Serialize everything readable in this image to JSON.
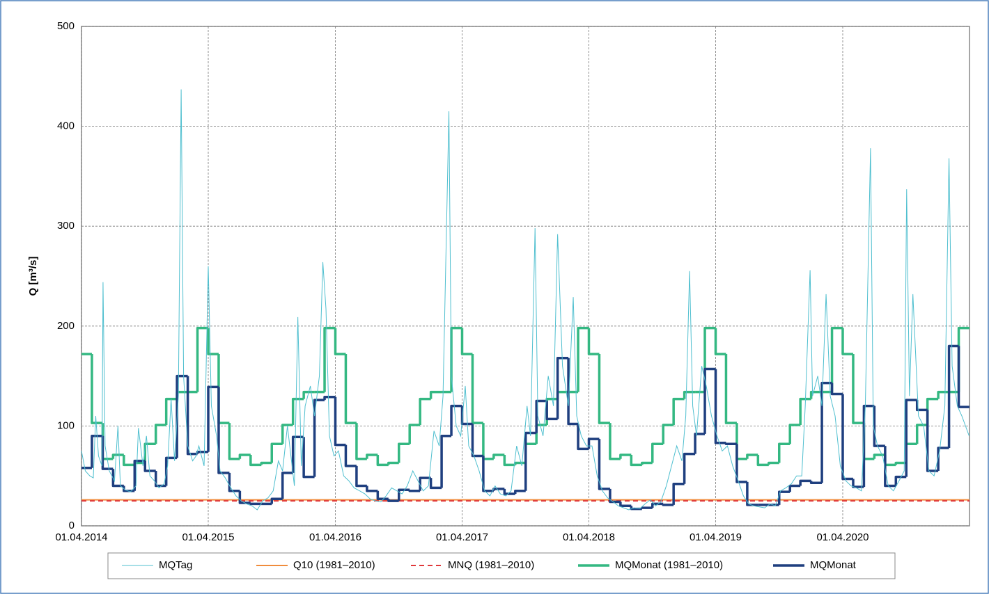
{
  "chart_data": {
    "type": "line",
    "ylabel": "Q [m³/s]",
    "xlim": [
      "2014-04-01",
      "2021-04-01"
    ],
    "xticks": [
      {
        "value": "2014-04-01",
        "label": "01.04.2014"
      },
      {
        "value": "2015-04-01",
        "label": "01.04.2015"
      },
      {
        "value": "2016-04-01",
        "label": "01.04.2016"
      },
      {
        "value": "2017-04-01",
        "label": "01.04.2017"
      },
      {
        "value": "2018-04-01",
        "label": "01.04.2018"
      },
      {
        "value": "2019-04-01",
        "label": "01.04.2019"
      },
      {
        "value": "2020-04-01",
        "label": "01.04.2020"
      }
    ],
    "ylim": [
      0,
      500
    ],
    "yticks": [
      0,
      100,
      200,
      300,
      400,
      500
    ],
    "grid": true,
    "x": [
      "2014-04-01",
      "2014-05-01",
      "2014-06-01",
      "2014-07-01",
      "2014-08-01",
      "2014-09-01",
      "2014-10-01",
      "2014-11-01",
      "2014-12-01",
      "2015-01-01",
      "2015-02-01",
      "2015-03-01",
      "2015-04-01",
      "2015-05-01",
      "2015-06-01",
      "2015-07-01",
      "2015-08-01",
      "2015-09-01",
      "2015-10-01",
      "2015-11-01",
      "2015-12-01",
      "2016-01-01",
      "2016-02-01",
      "2016-03-01",
      "2016-04-01",
      "2016-05-01",
      "2016-06-01",
      "2016-07-01",
      "2016-08-01",
      "2016-09-01",
      "2016-10-01",
      "2016-11-01",
      "2016-12-01",
      "2017-01-01",
      "2017-02-01",
      "2017-03-01",
      "2017-04-01",
      "2017-05-01",
      "2017-06-01",
      "2017-07-01",
      "2017-08-01",
      "2017-09-01",
      "2017-10-01",
      "2017-11-01",
      "2017-12-01",
      "2018-01-01",
      "2018-02-01",
      "2018-03-01",
      "2018-04-01",
      "2018-05-01",
      "2018-06-01",
      "2018-07-01",
      "2018-08-01",
      "2018-09-01",
      "2018-10-01",
      "2018-11-01",
      "2018-12-01",
      "2019-01-01",
      "2019-02-01",
      "2019-03-01",
      "2019-04-01",
      "2019-05-01",
      "2019-06-01",
      "2019-07-01",
      "2019-08-01",
      "2019-09-01",
      "2019-10-01",
      "2019-11-01",
      "2019-12-01",
      "2020-01-01",
      "2020-02-01",
      "2020-03-01",
      "2020-04-01",
      "2020-05-01",
      "2020-06-01",
      "2020-07-01",
      "2020-08-01",
      "2020-09-01",
      "2020-10-01",
      "2020-11-01",
      "2020-12-01",
      "2021-01-01",
      "2021-02-01",
      "2021-03-01"
    ],
    "series": [
      {
        "name": "MQTag",
        "color": "#4fbfcf",
        "style": "daily",
        "x": [
          "2014-04-01",
          "2014-04-12",
          "2014-04-25",
          "2014-05-05",
          "2014-05-12",
          "2014-05-20",
          "2014-05-30",
          "2014-06-02",
          "2014-06-08",
          "2014-06-20",
          "2014-07-05",
          "2014-07-15",
          "2014-07-22",
          "2014-08-05",
          "2014-08-20",
          "2014-09-05",
          "2014-09-12",
          "2014-09-25",
          "2014-10-05",
          "2014-10-15",
          "2014-10-28",
          "2014-11-10",
          "2014-11-25",
          "2014-12-05",
          "2014-12-15",
          "2014-12-25",
          "2015-01-05",
          "2015-01-13",
          "2015-01-20",
          "2015-02-01",
          "2015-02-15",
          "2015-02-25",
          "2015-03-05",
          "2015-03-20",
          "2015-04-01",
          "2015-04-10",
          "2015-04-25",
          "2015-05-05",
          "2015-05-20",
          "2015-06-05",
          "2015-06-20",
          "2015-07-05",
          "2015-07-20",
          "2015-08-05",
          "2015-08-20",
          "2015-09-05",
          "2015-09-20",
          "2015-10-05",
          "2015-10-20",
          "2015-11-01",
          "2015-11-15",
          "2015-11-25",
          "2015-12-05",
          "2015-12-15",
          "2015-12-25",
          "2016-01-05",
          "2016-01-20",
          "2016-02-01",
          "2016-02-15",
          "2016-02-25",
          "2016-03-05",
          "2016-03-15",
          "2016-03-28",
          "2016-04-10",
          "2016-04-25",
          "2016-05-10",
          "2016-05-25",
          "2016-06-10",
          "2016-06-25",
          "2016-07-10",
          "2016-07-25",
          "2016-08-10",
          "2016-08-25",
          "2016-09-10",
          "2016-09-25",
          "2016-10-10",
          "2016-10-25",
          "2016-11-10",
          "2016-11-25",
          "2016-12-10",
          "2016-12-25",
          "2017-01-10",
          "2017-01-25",
          "2017-02-05",
          "2017-02-22",
          "2017-03-01",
          "2017-03-15",
          "2017-03-28",
          "2017-04-10",
          "2017-04-20",
          "2017-05-05",
          "2017-05-20",
          "2017-06-05",
          "2017-06-20",
          "2017-07-05",
          "2017-07-20",
          "2017-08-05",
          "2017-08-20",
          "2017-09-05",
          "2017-09-20",
          "2017-10-05",
          "2017-10-15",
          "2017-10-28",
          "2017-11-05",
          "2017-11-20",
          "2017-12-05",
          "2017-12-20",
          "2018-01-01",
          "2018-01-15",
          "2018-02-01",
          "2018-02-15",
          "2018-02-25",
          "2018-03-10",
          "2018-03-25",
          "2018-04-10",
          "2018-04-25",
          "2018-05-10",
          "2018-05-25",
          "2018-06-10",
          "2018-06-25",
          "2018-07-10",
          "2018-07-25",
          "2018-08-10",
          "2018-08-25",
          "2018-09-10",
          "2018-09-25",
          "2018-10-10",
          "2018-10-25",
          "2018-11-10",
          "2018-11-25",
          "2018-12-10",
          "2018-12-25",
          "2019-01-05",
          "2019-01-16",
          "2019-01-25",
          "2019-02-05",
          "2019-02-20",
          "2019-03-05",
          "2019-03-20",
          "2019-04-05",
          "2019-04-20",
          "2019-05-05",
          "2019-05-20",
          "2019-06-05",
          "2019-06-20",
          "2019-07-05",
          "2019-07-20",
          "2019-08-05",
          "2019-08-20",
          "2019-09-05",
          "2019-09-20",
          "2019-10-05",
          "2019-10-20",
          "2019-11-05",
          "2019-11-20",
          "2019-12-05",
          "2019-12-15",
          "2019-12-29",
          "2020-01-05",
          "2020-01-20",
          "2020-02-01",
          "2020-02-13",
          "2020-02-25",
          "2020-03-10",
          "2020-03-25",
          "2020-04-10",
          "2020-04-25",
          "2020-05-10",
          "2020-05-25",
          "2020-06-05",
          "2020-06-20",
          "2020-06-28",
          "2020-07-10",
          "2020-07-25",
          "2020-08-10",
          "2020-08-25",
          "2020-09-10",
          "2020-09-25",
          "2020-10-02",
          "2020-10-10",
          "2020-10-20",
          "2020-11-05",
          "2020-11-20",
          "2020-12-05",
          "2020-12-20",
          "2021-01-05",
          "2021-01-20",
          "2021-02-01",
          "2021-02-10",
          "2021-02-25",
          "2021-03-10",
          "2021-03-31"
        ],
        "values": [
          75,
          55,
          50,
          48,
          110,
          70,
          60,
          244,
          80,
          55,
          45,
          100,
          40,
          36,
          34,
          40,
          98,
          60,
          90,
          50,
          45,
          38,
          42,
          60,
          127,
          65,
          130,
          437,
          150,
          80,
          65,
          70,
          80,
          60,
          260,
          120,
          90,
          55,
          48,
          38,
          30,
          25,
          22,
          20,
          16,
          25,
          28,
          35,
          65,
          55,
          100,
          70,
          40,
          209,
          60,
          120,
          140,
          110,
          150,
          264,
          217,
          90,
          70,
          75,
          50,
          45,
          38,
          35,
          32,
          27,
          25,
          24,
          30,
          38,
          35,
          32,
          40,
          55,
          45,
          35,
          40,
          95,
          80,
          130,
          415,
          150,
          100,
          90,
          140,
          80,
          70,
          55,
          35,
          30,
          40,
          32,
          30,
          35,
          80,
          60,
          120,
          90,
          298,
          110,
          90,
          150,
          120,
          292,
          160,
          120,
          229,
          110,
          90,
          80,
          80,
          50,
          35,
          28,
          24,
          20,
          18,
          16,
          18,
          17,
          22,
          26,
          20,
          24,
          40,
          60,
          80,
          65,
          110,
          255,
          120,
          90,
          160,
          140,
          110,
          90,
          75,
          80,
          60,
          45,
          30,
          22,
          20,
          19,
          18,
          22,
          20,
          35,
          38,
          42,
          50,
          50,
          120,
          256,
          130,
          150,
          120,
          232,
          130,
          110,
          60,
          45,
          40,
          38,
          35,
          120,
          378,
          100,
          80,
          70,
          40,
          35,
          45,
          55,
          337,
          130,
          232,
          110,
          100,
          55,
          50,
          75,
          120,
          368,
          160,
          120,
          110,
          90
        ]
      },
      {
        "name": "Q10 (1981–2010)",
        "color": "#f08c3c",
        "style": "level",
        "value": 26
      },
      {
        "name": "MNQ (1981–2010)",
        "color": "#e0383a",
        "style": "level-dashed",
        "value": 25
      },
      {
        "name": "MQMonat (1981–2010)",
        "color": "#34b882",
        "style": "step",
        "values": [
          172,
          103,
          67,
          71,
          61,
          63,
          82,
          101,
          127,
          134,
          134,
          198,
          172,
          103,
          67,
          71,
          61,
          63,
          82,
          101,
          127,
          134,
          134,
          198,
          172,
          103,
          67,
          71,
          61,
          63,
          82,
          101,
          127,
          134,
          134,
          198,
          172,
          103,
          67,
          71,
          61,
          63,
          82,
          101,
          127,
          134,
          134,
          198,
          172,
          103,
          67,
          71,
          61,
          63,
          82,
          101,
          127,
          134,
          134,
          198,
          172,
          103,
          67,
          71,
          61,
          63,
          82,
          101,
          127,
          134,
          134,
          198,
          172,
          103,
          67,
          71,
          61,
          63,
          82,
          101,
          127,
          134,
          134,
          198
        ]
      },
      {
        "name": "MQMonat",
        "color": "#1f3f7f",
        "style": "step",
        "values": [
          58,
          90,
          57,
          40,
          35,
          65,
          55,
          40,
          68,
          150,
          72,
          74,
          139,
          53,
          35,
          23,
          22,
          22,
          27,
          53,
          89,
          49,
          126,
          129,
          81,
          60,
          40,
          35,
          27,
          25,
          36,
          35,
          48,
          38,
          90,
          120,
          102,
          70,
          35,
          37,
          32,
          35,
          93,
          125,
          107,
          168,
          102,
          77,
          87,
          37,
          24,
          20,
          17,
          18,
          22,
          21,
          42,
          72,
          92,
          157,
          83,
          82,
          44,
          21,
          21,
          21,
          34,
          40,
          45,
          43,
          143,
          132,
          47,
          39,
          120,
          80,
          40,
          49,
          126,
          116,
          55,
          78,
          180,
          119
        ]
      }
    ]
  }
}
